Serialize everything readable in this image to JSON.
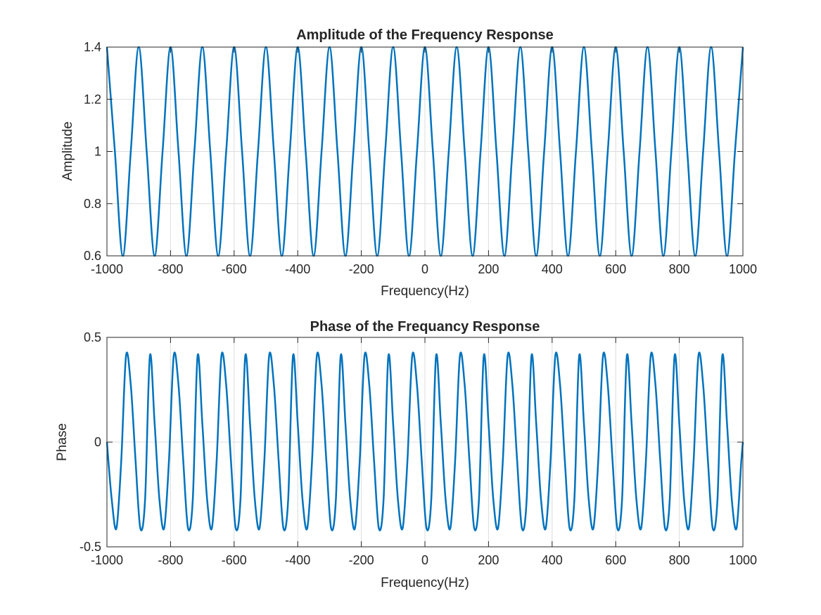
{
  "chart_data": [
    {
      "type": "line",
      "title": "Amplitude of the Frequency Response",
      "xlabel": "Frequency(Hz)",
      "ylabel": "Amplitude",
      "xlim": [
        -1000,
        1000
      ],
      "ylim": [
        0.6,
        1.4
      ],
      "x_ticks": [
        -1000,
        -800,
        -600,
        -400,
        -200,
        0,
        200,
        400,
        600,
        800,
        1000
      ],
      "x_tick_labels": [
        "-1000",
        "-800",
        "-600",
        "-400",
        "-200",
        "0",
        "200",
        "400",
        "600",
        "800",
        "1000"
      ],
      "y_ticks": [
        0.6,
        0.8,
        1,
        1.2,
        1.4
      ],
      "y_tick_labels": [
        "0.6",
        "0.8",
        "1",
        "1.2",
        "1.4"
      ],
      "grid": true,
      "series": [
        {
          "color": "#0072BD",
          "x": [
            -1000,
            -975,
            -950,
            -925,
            -900,
            -875,
            -850,
            -825,
            -800,
            -775,
            -750,
            -725,
            -700,
            -675,
            -650,
            -625,
            -600,
            -575,
            -550,
            -525,
            -500,
            -475,
            -450,
            -425,
            -400,
            -375,
            -350,
            -325,
            -300,
            -275,
            -250,
            -225,
            -200,
            -175,
            -150,
            -125,
            -100,
            -75,
            -50,
            -25,
            0,
            25,
            50,
            75,
            100,
            125,
            150,
            175,
            200,
            225,
            250,
            275,
            300,
            325,
            350,
            375,
            400,
            425,
            450,
            475,
            500,
            525,
            550,
            575,
            600,
            625,
            650,
            675,
            700,
            725,
            750,
            775,
            800,
            825,
            850,
            875,
            900,
            925,
            950,
            975,
            1000
          ],
          "y": [
            1.4,
            1.0,
            0.6,
            1.0,
            1.4,
            1.0,
            0.6,
            1.0,
            1.4,
            1.0,
            0.6,
            1.0,
            1.4,
            1.0,
            0.6,
            1.0,
            1.4,
            1.0,
            0.6,
            1.0,
            1.4,
            1.0,
            0.6,
            1.0,
            1.4,
            1.0,
            0.6,
            1.0,
            1.4,
            1.0,
            0.6,
            1.0,
            1.4,
            1.0,
            0.6,
            1.0,
            1.4,
            1.0,
            0.6,
            1.0,
            1.4,
            1.0,
            0.6,
            1.0,
            1.4,
            1.0,
            0.6,
            1.0,
            1.4,
            1.0,
            0.6,
            1.0,
            1.4,
            1.0,
            0.6,
            1.0,
            1.4,
            1.0,
            0.6,
            1.0,
            1.4,
            1.0,
            0.6,
            1.0,
            1.4,
            1.0,
            0.6,
            1.0,
            1.4,
            1.0,
            0.6,
            1.0,
            1.4,
            1.0,
            0.6,
            1.0,
            1.4,
            1.0,
            0.6,
            1.0,
            1.4
          ]
        }
      ]
    },
    {
      "type": "line",
      "title": "Phase of the Frequancy Response",
      "xlabel": "Frequency(Hz)",
      "ylabel": "Phase",
      "xlim": [
        -1000,
        1000
      ],
      "ylim": [
        -0.5,
        0.5
      ],
      "x_ticks": [
        -1000,
        -800,
        -600,
        -400,
        -200,
        0,
        200,
        400,
        600,
        800,
        1000
      ],
      "x_tick_labels": [
        "-1000",
        "-800",
        "-600",
        "-400",
        "-200",
        "0",
        "200",
        "400",
        "600",
        "800",
        "1000"
      ],
      "y_ticks": [
        -0.5,
        0,
        0.5
      ],
      "y_tick_labels": [
        "-0.5",
        "0",
        "0.5"
      ],
      "grid": true,
      "series": [
        {
          "color": "#0072BD",
          "x": [
            -1000,
            -985,
            -970,
            -955,
            -940,
            -925,
            -910,
            -895,
            -880,
            -865,
            -850,
            -835,
            -820,
            -805,
            -790,
            -775,
            -760,
            -745,
            -730,
            -715,
            -700,
            -685,
            -670,
            -655,
            -640,
            -625,
            -610,
            -595,
            -580,
            -565,
            -550,
            -535,
            -520,
            -505,
            -490,
            -475,
            -460,
            -445,
            -430,
            -415,
            -400,
            -385,
            -370,
            -355,
            -340,
            -325,
            -310,
            -295,
            -280,
            -265,
            -250,
            -235,
            -220,
            -205,
            -190,
            -175,
            -160,
            -145,
            -130,
            -115,
            -100,
            -85,
            -70,
            -55,
            -40,
            -25,
            -10,
            5,
            20,
            35,
            50,
            65,
            80,
            95,
            110,
            125,
            140,
            155,
            170,
            185,
            200,
            215,
            230,
            245,
            260,
            275,
            290,
            305,
            320,
            335,
            350,
            365,
            380,
            395,
            410,
            425,
            440,
            455,
            470,
            485,
            500,
            515,
            530,
            545,
            560,
            575,
            590,
            605,
            620,
            635,
            650,
            665,
            680,
            695,
            710,
            725,
            740,
            755,
            770,
            785,
            800,
            815,
            830,
            845,
            860,
            875,
            890,
            905,
            920,
            935,
            950,
            965,
            980,
            995,
            1000
          ],
          "y": [
            0.0,
            -0.273,
            -0.411,
            -0.089,
            0.411,
            0.273,
            -0.089,
            -0.411,
            -0.273,
            0.411,
            0.089,
            -0.273,
            -0.411,
            -0.089,
            0.411,
            0.273,
            -0.089,
            -0.411,
            -0.273,
            0.411,
            0.089,
            -0.273,
            -0.411,
            -0.089,
            0.411,
            0.273,
            -0.089,
            -0.411,
            -0.273,
            0.411,
            0.089,
            -0.273,
            -0.411,
            -0.089,
            0.411,
            0.273,
            -0.089,
            -0.411,
            -0.273,
            0.411,
            0.089,
            -0.273,
            -0.411,
            -0.089,
            0.411,
            0.273,
            -0.089,
            -0.411,
            -0.273,
            0.411,
            0.089,
            -0.273,
            -0.411,
            -0.089,
            0.411,
            0.273,
            -0.089,
            -0.411,
            -0.273,
            0.411,
            0.089,
            -0.273,
            -0.411,
            -0.089,
            0.411,
            0.273,
            -0.089,
            -0.411,
            -0.273,
            0.411,
            0.089,
            -0.273,
            -0.411,
            -0.089,
            0.411,
            0.273,
            -0.089,
            -0.411,
            -0.273,
            0.411,
            0.089,
            -0.273,
            -0.411,
            -0.089,
            0.411,
            0.273,
            -0.089,
            -0.411,
            -0.273,
            0.411,
            0.089,
            -0.273,
            -0.411,
            -0.089,
            0.411,
            0.273,
            -0.089,
            -0.411,
            -0.273,
            0.411,
            0.089,
            -0.273,
            -0.411,
            -0.089,
            0.411,
            0.273,
            -0.089,
            -0.411,
            -0.273,
            0.411,
            0.089,
            -0.273,
            -0.411,
            -0.089,
            0.411,
            0.273,
            -0.089,
            -0.411,
            -0.273,
            0.411,
            0.089,
            -0.273,
            -0.411,
            -0.089,
            0.411,
            0.273,
            -0.089,
            -0.411,
            -0.273,
            0.411,
            0.089,
            -0.273,
            -0.411,
            -0.089,
            0.0
          ]
        }
      ]
    }
  ]
}
